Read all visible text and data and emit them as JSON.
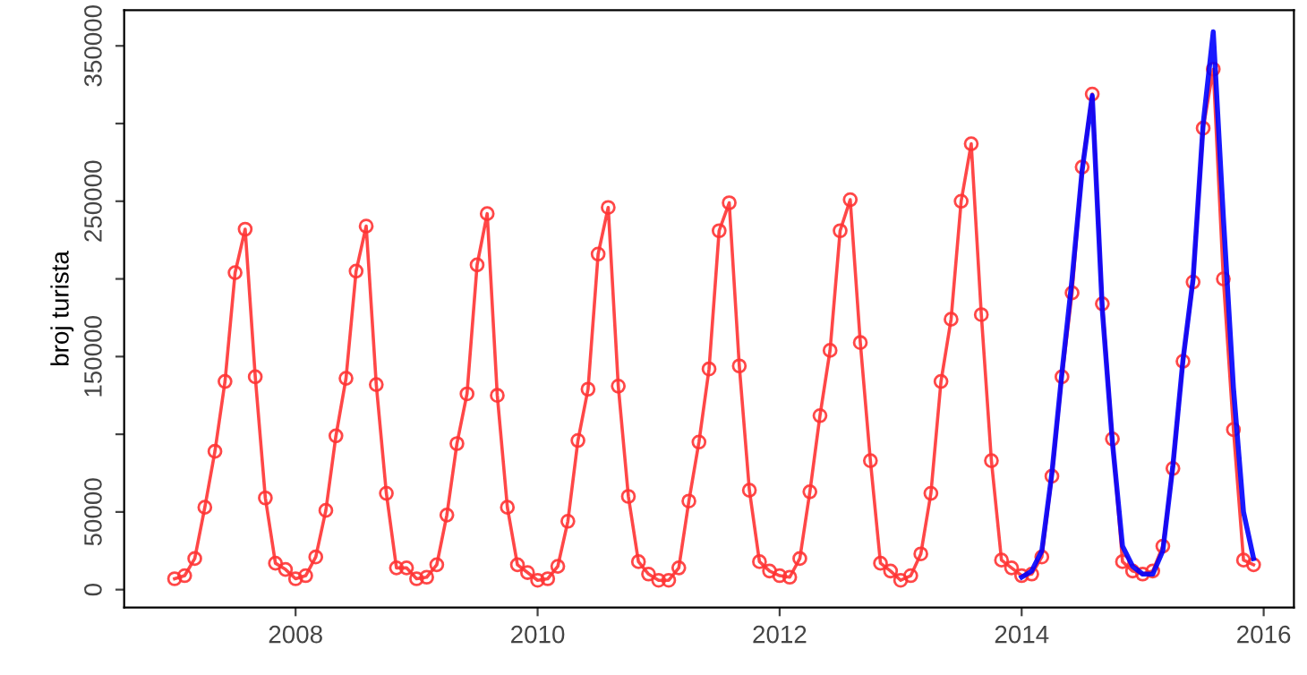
{
  "chart_data": {
    "type": "line",
    "ylabel": "broj turista",
    "xlim": [
      "2006-08",
      "2016-04"
    ],
    "xticks": [
      "2008",
      "2010",
      "2012",
      "2014",
      "2016"
    ],
    "ylim": [
      -11500,
      373000
    ],
    "yticks": [
      0,
      50000,
      {
        "value": 100000,
        "label": null
      },
      150000,
      {
        "value": 200000,
        "label": null
      },
      250000,
      {
        "value": 300000,
        "label": null
      },
      350000
    ],
    "grid": false,
    "series": [
      {
        "color": "#ff3333",
        "marker": "circle",
        "x": [
          "2007-01",
          "2007-02",
          "2007-03",
          "2007-04",
          "2007-05",
          "2007-06",
          "2007-07",
          "2007-08",
          "2007-09",
          "2007-10",
          "2007-11",
          "2007-12",
          "2008-01",
          "2008-02",
          "2008-03",
          "2008-04",
          "2008-05",
          "2008-06",
          "2008-07",
          "2008-08",
          "2008-09",
          "2008-10",
          "2008-11",
          "2008-12",
          "2009-01",
          "2009-02",
          "2009-03",
          "2009-04",
          "2009-05",
          "2009-06",
          "2009-07",
          "2009-08",
          "2009-09",
          "2009-10",
          "2009-11",
          "2009-12",
          "2010-01",
          "2010-02",
          "2010-03",
          "2010-04",
          "2010-05",
          "2010-06",
          "2010-07",
          "2010-08",
          "2010-09",
          "2010-10",
          "2010-11",
          "2010-12",
          "2011-01",
          "2011-02",
          "2011-03",
          "2011-04",
          "2011-05",
          "2011-06",
          "2011-07",
          "2011-08",
          "2011-09",
          "2011-10",
          "2011-11",
          "2011-12",
          "2012-01",
          "2012-02",
          "2012-03",
          "2012-04",
          "2012-05",
          "2012-06",
          "2012-07",
          "2012-08",
          "2012-09",
          "2012-10",
          "2012-11",
          "2012-12",
          "2013-01",
          "2013-02",
          "2013-03",
          "2013-04",
          "2013-05",
          "2013-06",
          "2013-07",
          "2013-08",
          "2013-09",
          "2013-10",
          "2013-11",
          "2013-12",
          "2014-01",
          "2014-02",
          "2014-03",
          "2014-04",
          "2014-05",
          "2014-06",
          "2014-07",
          "2014-08",
          "2014-09",
          "2014-10",
          "2014-11",
          "2014-12",
          "2015-01",
          "2015-02",
          "2015-03",
          "2015-04",
          "2015-05",
          "2015-06",
          "2015-07",
          "2015-08",
          "2015-09",
          "2015-10",
          "2015-11",
          "2015-12"
        ],
        "values": [
          7000,
          9000,
          20000,
          53000,
          89000,
          134000,
          204000,
          232000,
          137000,
          59000,
          17000,
          13000,
          7000,
          9000,
          21000,
          51000,
          99000,
          136000,
          205000,
          234000,
          132000,
          62000,
          14000,
          14000,
          7000,
          8000,
          16000,
          48000,
          94000,
          126000,
          209000,
          242000,
          125000,
          53000,
          16000,
          11000,
          6000,
          7000,
          15000,
          44000,
          96000,
          129000,
          216000,
          246000,
          131000,
          60000,
          18000,
          10000,
          6000,
          6000,
          14000,
          57000,
          95000,
          142000,
          231000,
          249000,
          144000,
          64000,
          18000,
          12000,
          9000,
          8000,
          20000,
          63000,
          112000,
          154000,
          231000,
          251000,
          159000,
          83000,
          17000,
          12000,
          6000,
          9000,
          23000,
          62000,
          134000,
          174000,
          250000,
          287000,
          177000,
          83000,
          19000,
          14000,
          9000,
          10000,
          21000,
          73000,
          137000,
          191000,
          272000,
          319000,
          184000,
          97000,
          18000,
          12000,
          10000,
          12000,
          28000,
          78000,
          147000,
          198000,
          297000,
          335000,
          200000,
          103000,
          19000,
          16000
        ]
      },
      {
        "color": "#0000ff",
        "marker": "none",
        "x": [
          "2014-01",
          "2014-02",
          "2014-03",
          "2014-04",
          "2014-05",
          "2014-06",
          "2014-07",
          "2014-08",
          "2014-09",
          "2014-10",
          "2014-11",
          "2014-12",
          "2015-01",
          "2015-02",
          "2015-03",
          "2015-04",
          "2015-05",
          "2015-06",
          "2015-07",
          "2015-08",
          "2015-09",
          "2015-10",
          "2015-11",
          "2015-12"
        ],
        "values": [
          8000,
          12000,
          25000,
          75000,
          140000,
          200000,
          270000,
          318000,
          180000,
          95000,
          28000,
          15000,
          10000,
          10000,
          25000,
          80000,
          148000,
          200000,
          300000,
          359000,
          240000,
          130000,
          50000,
          20000
        ]
      }
    ]
  }
}
